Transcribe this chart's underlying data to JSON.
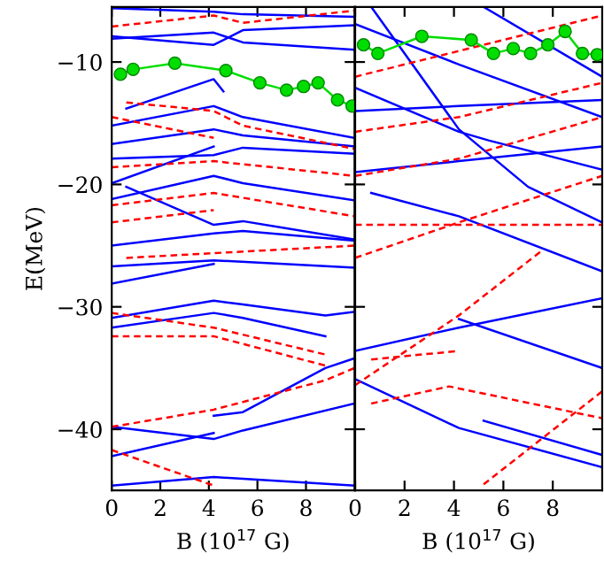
{
  "chart_data": [
    {
      "type": "line",
      "xlabel": "B (10$^{17}$ G)",
      "ylabel": "E(MeV)",
      "xlim": [
        0,
        10
      ],
      "ylim": [
        -45,
        -5.5
      ],
      "xticks": [
        0,
        2,
        4,
        6,
        8
      ],
      "yticks": [
        -10,
        -20,
        -30,
        -40
      ],
      "grid": false,
      "legend": false,
      "series": [
        {
          "color": "#0000ff",
          "line_style": "solid",
          "x": [
            0,
            4.2,
            5.4,
            10
          ],
          "values": [
            -5.6,
            -5.9,
            -6.1,
            -6.3
          ]
        },
        {
          "color": "#0000ff",
          "line_style": "solid",
          "x": [
            0,
            4.2,
            5.4,
            8.8,
            10
          ],
          "values": [
            -7.9,
            -8.6,
            -7.4,
            -7.1,
            -7.0
          ]
        },
        {
          "color": "#0000ff",
          "line_style": "solid",
          "x": [
            0,
            4.2,
            5.4,
            10
          ],
          "values": [
            -8.1,
            -7.6,
            -8.4,
            -9.0
          ]
        },
        {
          "color": "#0000ff",
          "line_style": "solid",
          "x": [
            0.6,
            4.2,
            4.6
          ],
          "values": [
            -13.8,
            -11.4,
            -12.4
          ]
        },
        {
          "color": "#0000ff",
          "line_style": "solid",
          "x": [
            0,
            4.2,
            5.4,
            10
          ],
          "values": [
            -15.2,
            -13.6,
            -14.5,
            -16.2
          ]
        },
        {
          "color": "#0000ff",
          "line_style": "solid",
          "x": [
            0,
            4.2,
            5.4,
            10
          ],
          "values": [
            -16.7,
            -15.5,
            -16.0,
            -16.9
          ]
        },
        {
          "color": "#0000ff",
          "line_style": "solid",
          "x": [
            0,
            4.2,
            5.4,
            10
          ],
          "values": [
            -17.9,
            -17.6,
            -17.0,
            -17.5
          ]
        },
        {
          "color": "#0000ff",
          "line_style": "solid",
          "x": [
            0,
            4.2
          ],
          "values": [
            -19.9,
            -16.9
          ]
        },
        {
          "color": "#0000ff",
          "line_style": "solid",
          "x": [
            0,
            4.2,
            5.4,
            10
          ],
          "values": [
            -21.2,
            -19.3,
            -19.9,
            -21.3
          ]
        },
        {
          "color": "#0000ff",
          "line_style": "solid",
          "x": [
            0.6,
            4.2,
            5.4,
            10
          ],
          "values": [
            -20.2,
            -23.3,
            -23.0,
            -24.5
          ]
        },
        {
          "color": "#0000ff",
          "line_style": "solid",
          "x": [
            0,
            4.2,
            5.4,
            10
          ],
          "values": [
            -25.0,
            -24.0,
            -23.8,
            -24.6
          ]
        },
        {
          "color": "#0000ff",
          "line_style": "solid",
          "x": [
            0,
            4.2,
            10
          ],
          "values": [
            -26.7,
            -26.2,
            -26.8
          ]
        },
        {
          "color": "#0000ff",
          "line_style": "solid",
          "x": [
            0,
            4.2
          ],
          "values": [
            -28.1,
            -26.5
          ]
        },
        {
          "color": "#0000ff",
          "line_style": "solid",
          "x": [
            0,
            4.2,
            5.4,
            8.8,
            10
          ],
          "values": [
            -30.9,
            -29.5,
            -29.8,
            -30.7,
            -30.4
          ]
        },
        {
          "color": "#0000ff",
          "line_style": "solid",
          "x": [
            0,
            4.2,
            5.4,
            8.8
          ],
          "values": [
            -31.7,
            -30.5,
            -30.9,
            -32.4
          ]
        },
        {
          "color": "#0000ff",
          "line_style": "solid",
          "x": [
            0,
            4.2,
            5.4,
            10
          ],
          "values": [
            -39.8,
            -40.8,
            -40.1,
            -37.9
          ]
        },
        {
          "color": "#0000ff",
          "line_style": "solid",
          "x": [
            0,
            4.2
          ],
          "values": [
            -42.2,
            -40.3
          ]
        },
        {
          "color": "#0000ff",
          "line_style": "solid",
          "x": [
            4.2,
            5.4,
            8.8,
            10
          ],
          "values": [
            -38.9,
            -38.6,
            -35.0,
            -34.2
          ]
        },
        {
          "color": "#0000ff",
          "line_style": "solid",
          "x": [
            0,
            4.2,
            10
          ],
          "values": [
            -44.6,
            -43.9,
            -44.6
          ]
        },
        {
          "color": "#ff0000",
          "line_style": "dashed",
          "x": [
            0,
            4.2,
            5.4,
            10
          ],
          "values": [
            -7.1,
            -6.2,
            -6.8,
            -5.8
          ]
        },
        {
          "color": "#ff0000",
          "line_style": "dashed",
          "x": [
            0.6,
            4.2,
            5.4,
            10
          ],
          "values": [
            -13.3,
            -14.0,
            -15.2,
            -17.1
          ]
        },
        {
          "color": "#ff0000",
          "line_style": "dashed",
          "x": [
            0,
            4.2
          ],
          "values": [
            -14.5,
            -16.2
          ]
        },
        {
          "color": "#ff0000",
          "line_style": "dashed",
          "x": [
            0,
            4.2,
            10
          ],
          "values": [
            -18.6,
            -18.1,
            -19.3
          ]
        },
        {
          "color": "#ff0000",
          "line_style": "dashed",
          "x": [
            0,
            4.2,
            10
          ],
          "values": [
            -21.7,
            -20.7,
            -22.6
          ]
        },
        {
          "color": "#ff0000",
          "line_style": "dashed",
          "x": [
            0,
            4.2
          ],
          "values": [
            -23.1,
            -22.1
          ]
        },
        {
          "color": "#ff0000",
          "line_style": "dashed",
          "x": [
            0.6,
            10
          ],
          "values": [
            -26.0,
            -25.0
          ]
        },
        {
          "color": "#ff0000",
          "line_style": "dashed",
          "x": [
            0,
            4.2,
            8.8
          ],
          "values": [
            -30.5,
            -31.7,
            -33.9
          ]
        },
        {
          "color": "#ff0000",
          "line_style": "dashed",
          "x": [
            0,
            4.2,
            8.8
          ],
          "values": [
            -32.4,
            -32.4,
            -34.8
          ]
        },
        {
          "color": "#ff0000",
          "line_style": "dashed",
          "x": [
            0,
            4.2,
            8.8,
            10
          ],
          "values": [
            -39.8,
            -38.4,
            -36.0,
            -35.0
          ]
        },
        {
          "color": "#ff0000",
          "line_style": "dashed",
          "x": [
            0,
            4.2
          ],
          "values": [
            -41.7,
            -44.6
          ]
        },
        {
          "color": "#00dd00",
          "line_style": "solid",
          "marker": "circle",
          "x": [
            0.36,
            0.88,
            2.6,
            4.7,
            6.1,
            7.2,
            7.9,
            8.5,
            9.3,
            9.9
          ],
          "values": [
            -11.0,
            -10.6,
            -10.1,
            -10.7,
            -11.7,
            -12.3,
            -12.0,
            -11.7,
            -13.1,
            -13.6
          ]
        }
      ]
    },
    {
      "type": "line",
      "xlabel": "B (10$^{17}$ G)",
      "xlim": [
        0,
        10
      ],
      "ylim": [
        -45,
        -5.5
      ],
      "xticks": [
        0,
        2,
        4,
        6,
        8
      ],
      "yticks": [
        -10,
        -20,
        -30,
        -40
      ],
      "tick_labels": "x",
      "grid": false,
      "legend": false,
      "series": [
        {
          "color": "#0000ff",
          "line_style": "solid",
          "x": [
            0,
            4.2,
            10
          ],
          "values": [
            -6.9,
            -10.2,
            -14.5
          ]
        },
        {
          "color": "#0000ff",
          "line_style": "solid",
          "x": [
            0,
            4.2,
            5.4,
            10
          ],
          "values": [
            -12.1,
            -15.7,
            -16.4,
            -18.8
          ]
        },
        {
          "color": "#0000ff",
          "line_style": "solid",
          "x": [
            0.65,
            4.2,
            7.0,
            10
          ],
          "values": [
            -5.5,
            -15.5,
            -20.2,
            -23.1
          ]
        },
        {
          "color": "#0000ff",
          "line_style": "solid",
          "x": [
            0,
            4.2,
            10
          ],
          "values": [
            -14.0,
            -13.6,
            -13.1
          ]
        },
        {
          "color": "#0000ff",
          "line_style": "solid",
          "x": [
            0,
            4.2,
            10
          ],
          "values": [
            -19.0,
            -18.1,
            -16.9
          ]
        },
        {
          "color": "#0000ff",
          "line_style": "solid",
          "x": [
            0.65,
            4.2,
            10
          ],
          "values": [
            -20.7,
            -22.6,
            -27.1
          ]
        },
        {
          "color": "#0000ff",
          "line_style": "solid",
          "x": [
            5.2,
            10
          ],
          "values": [
            -5.5,
            -11.2
          ]
        },
        {
          "color": "#0000ff",
          "line_style": "solid",
          "x": [
            0,
            4.2,
            10
          ],
          "values": [
            -33.6,
            -31.7,
            -29.3
          ]
        },
        {
          "color": "#0000ff",
          "line_style": "solid",
          "x": [
            0,
            4.2,
            10
          ],
          "values": [
            -35.9,
            -39.9,
            -43.1
          ]
        },
        {
          "color": "#0000ff",
          "line_style": "solid",
          "x": [
            5.2,
            10
          ],
          "values": [
            -39.3,
            -42.1
          ]
        },
        {
          "color": "#0000ff",
          "line_style": "solid",
          "x": [
            4.2,
            10
          ],
          "values": [
            -31.0,
            -35.0
          ]
        },
        {
          "color": "#ff0000",
          "line_style": "dashed",
          "x": [
            0,
            10
          ],
          "values": [
            -11.2,
            -6.2
          ]
        },
        {
          "color": "#ff0000",
          "line_style": "dashed",
          "x": [
            0,
            4.2,
            10
          ],
          "values": [
            -15.7,
            -14.5,
            -11.7
          ]
        },
        {
          "color": "#ff0000",
          "line_style": "dashed",
          "x": [
            0,
            4.2,
            10
          ],
          "values": [
            -19.3,
            -17.9,
            -14.5
          ]
        },
        {
          "color": "#ff0000",
          "line_style": "dashed",
          "x": [
            0,
            4.2,
            10
          ],
          "values": [
            -26.0,
            -23.1,
            -19.3
          ]
        },
        {
          "color": "#ff0000",
          "line_style": "dashed",
          "x": [
            0,
            10
          ],
          "values": [
            -23.3,
            -23.3
          ]
        },
        {
          "color": "#ff0000",
          "line_style": "dashed",
          "x": [
            0.65,
            3.8,
            10
          ],
          "values": [
            -37.9,
            -36.5,
            -39.1
          ]
        },
        {
          "color": "#ff0000",
          "line_style": "dashed",
          "x": [
            0,
            4.2,
            7.5
          ],
          "values": [
            -36.4,
            -30.7,
            -25.5
          ]
        },
        {
          "color": "#ff0000",
          "line_style": "dashed",
          "x": [
            0.65,
            4.2
          ],
          "values": [
            -34.3,
            -33.6
          ]
        },
        {
          "color": "#ff0000",
          "line_style": "dashed",
          "x": [
            5.2,
            10
          ],
          "values": [
            -44.5,
            -36.9
          ]
        },
        {
          "color": "#00dd00",
          "line_style": "solid",
          "marker": "circle",
          "x": [
            0.34,
            0.92,
            2.7,
            4.7,
            5.6,
            6.4,
            7.1,
            7.8,
            8.5,
            9.2,
            9.8
          ],
          "values": [
            -8.6,
            -9.3,
            -7.9,
            -8.2,
            -9.3,
            -8.9,
            -9.3,
            -8.6,
            -7.5,
            -9.3,
            -9.4
          ]
        }
      ]
    }
  ]
}
